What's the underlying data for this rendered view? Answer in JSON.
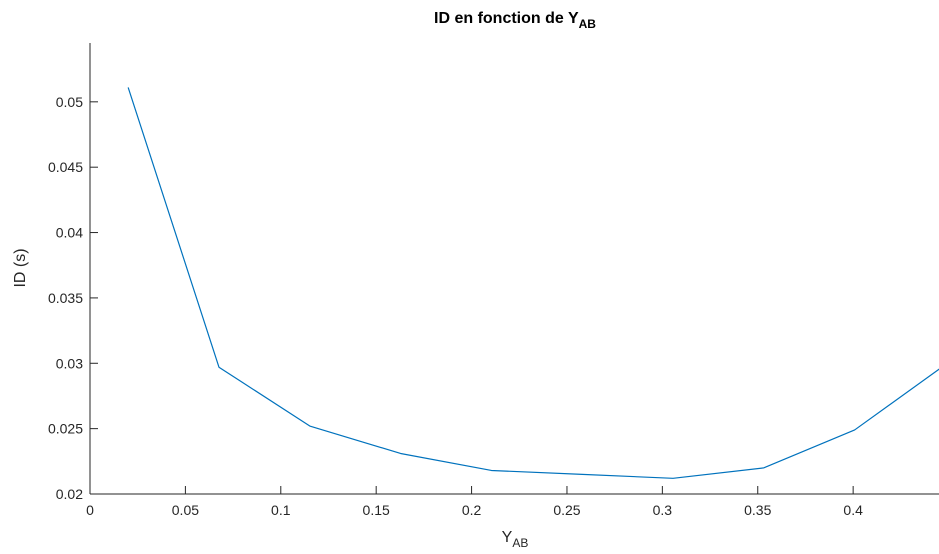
{
  "chart_data": {
    "type": "line",
    "title": {
      "main": "ID en fonction de Y",
      "subscript": "AB"
    },
    "xlabel": {
      "main": "Y",
      "subscript": "AB"
    },
    "ylabel": "ID (s)",
    "xlim": [
      0,
      0.445
    ],
    "ylim": [
      0.02,
      0.0545
    ],
    "xticks": [
      0,
      0.05,
      0.1,
      0.15,
      0.2,
      0.25,
      0.3,
      0.35,
      0.4
    ],
    "xtick_labels": [
      "0",
      "0.05",
      "0.1",
      "0.15",
      "0.2",
      "0.25",
      "0.3",
      "0.35",
      "0.4"
    ],
    "yticks": [
      0.02,
      0.025,
      0.03,
      0.035,
      0.04,
      0.045,
      0.05
    ],
    "ytick_labels": [
      "0.02",
      "0.025",
      "0.03",
      "0.035",
      "0.04",
      "0.045",
      "0.05"
    ],
    "grid": false,
    "legend": "none",
    "series": [
      {
        "color": "#0072BD",
        "x": [
          0.02,
          0.0676,
          0.1152,
          0.1628,
          0.2104,
          0.258,
          0.3056,
          0.3532,
          0.4008,
          0.4484
        ],
        "y": [
          0.0511,
          0.0297,
          0.0252,
          0.0231,
          0.0218,
          0.0215,
          0.0212,
          0.022,
          0.0249,
          0.0299
        ]
      }
    ]
  }
}
